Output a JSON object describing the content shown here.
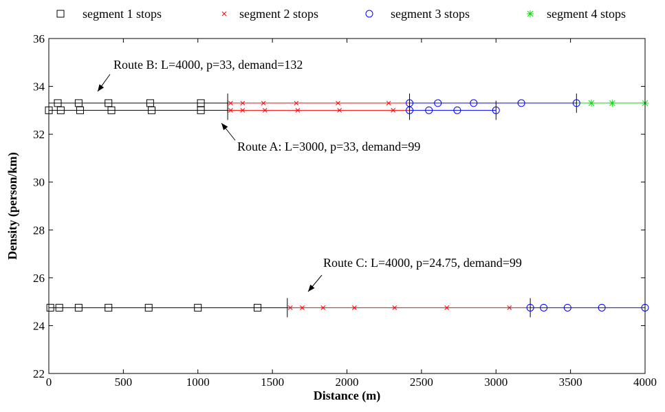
{
  "chart_data": {
    "type": "scatter",
    "xlabel": "Distance (m)",
    "ylabel": "Density (person/km)",
    "xlim": [
      0,
      4000
    ],
    "ylim": [
      22,
      36
    ],
    "xticks": [
      0,
      500,
      1000,
      1500,
      2000,
      2500,
      3000,
      3500,
      4000
    ],
    "yticks": [
      22,
      24,
      26,
      28,
      30,
      32,
      34,
      36
    ],
    "grid": false,
    "legend_position": "top",
    "legend": [
      {
        "name": "segment 1 stops",
        "marker": "square",
        "color": "#000000"
      },
      {
        "name": "segment 2 stops",
        "marker": "x",
        "color": "#ff0000"
      },
      {
        "name": "segment 3 stops",
        "marker": "circle",
        "color": "#0000ff"
      },
      {
        "name": "segment 4 stops",
        "marker": "star",
        "color": "#00dd00"
      }
    ],
    "routes": [
      {
        "annotation": "Route B: L=4000, p=33, demand=132",
        "density": 33.3,
        "boundaries": [
          1200,
          2420,
          3540
        ],
        "segments": [
          {
            "segment": 1,
            "x_start": 0,
            "x_end": 1200,
            "stops": [
              60,
              200,
              400,
              680,
              1020
            ]
          },
          {
            "segment": 2,
            "x_start": 1200,
            "x_end": 2420,
            "stops": [
              1220,
              1300,
              1440,
              1660,
              1940,
              2280
            ]
          },
          {
            "segment": 3,
            "x_start": 2420,
            "x_end": 3540,
            "stops": [
              2420,
              2610,
              2850,
              3170,
              3540
            ]
          },
          {
            "segment": 4,
            "x_start": 3540,
            "x_end": 4000,
            "stops": [
              3640,
              3780,
              4000
            ]
          }
        ]
      },
      {
        "annotation": "Route A: L=3000, p=33, demand=99",
        "density": 33.0,
        "boundaries": [
          1200,
          2420,
          3000
        ],
        "segments": [
          {
            "segment": 1,
            "x_start": 0,
            "x_end": 1200,
            "stops": [
              0,
              80,
              210,
              420,
              690,
              1020
            ]
          },
          {
            "segment": 2,
            "x_start": 1200,
            "x_end": 2420,
            "stops": [
              1220,
              1300,
              1450,
              1670,
              1950,
              2310
            ]
          },
          {
            "segment": 3,
            "x_start": 2420,
            "x_end": 3000,
            "stops": [
              2420,
              2550,
              2740,
              3000
            ]
          }
        ]
      },
      {
        "annotation": "Route C: L=4000, p=24.75, demand=99",
        "density": 24.75,
        "boundaries": [
          1600,
          3230
        ],
        "segments": [
          {
            "segment": 1,
            "x_start": 0,
            "x_end": 1600,
            "stops": [
              10,
              70,
              200,
              400,
              670,
              1000,
              1400
            ]
          },
          {
            "segment": 2,
            "x_start": 1600,
            "x_end": 3230,
            "stops": [
              1620,
              1700,
              1840,
              2050,
              2320,
              2670,
              3090
            ]
          },
          {
            "segment": 3,
            "x_start": 3230,
            "x_end": 4000,
            "stops": [
              3230,
              3320,
              3480,
              3710,
              4000
            ]
          }
        ]
      }
    ]
  }
}
